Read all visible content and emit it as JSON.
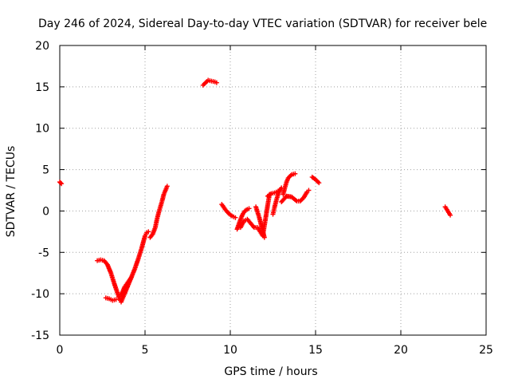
{
  "chart_data": {
    "type": "scatter",
    "title": "Day 246 of 2024, Sidereal Day-to-day VTEC variation (SDTVAR) for receiver bele",
    "xlabel": "GPS time / hours",
    "ylabel": "SDTVAR / TECUs",
    "xlim": [
      0,
      25
    ],
    "ylim": [
      -15,
      20
    ],
    "xticks": [
      0,
      5,
      10,
      15,
      20,
      25
    ],
    "yticks": [
      -15,
      -10,
      -5,
      0,
      5,
      10,
      15,
      20
    ],
    "xtick_labels": [
      "0",
      "5",
      "10",
      "15",
      "20",
      "25"
    ],
    "ytick_labels": [
      "-15",
      "-10",
      "-5",
      "0",
      "5",
      "10",
      "15",
      "20"
    ],
    "grid": true,
    "marker": "+",
    "color": "#ff0000",
    "segments": [
      {
        "name": "arc-1",
        "points": [
          [
            0.0,
            3.5
          ],
          [
            0.05,
            3.4
          ],
          [
            0.1,
            3.3
          ]
        ]
      },
      {
        "name": "arc-2",
        "points": [
          [
            2.2,
            -6.0
          ],
          [
            2.4,
            -5.9
          ],
          [
            2.6,
            -6.0
          ],
          [
            2.8,
            -6.5
          ],
          [
            3.0,
            -7.5
          ],
          [
            3.2,
            -8.8
          ],
          [
            3.4,
            -10.0
          ],
          [
            3.55,
            -10.8
          ],
          [
            3.6,
            -11.0
          ],
          [
            3.7,
            -10.5
          ],
          [
            3.8,
            -10.0
          ],
          [
            4.0,
            -9.0
          ],
          [
            4.2,
            -8.0
          ],
          [
            4.4,
            -7.0
          ],
          [
            4.6,
            -5.8
          ],
          [
            4.8,
            -4.5
          ],
          [
            5.0,
            -3.0
          ],
          [
            5.1,
            -2.6
          ],
          [
            5.2,
            -2.5
          ]
        ]
      },
      {
        "name": "arc-3",
        "points": [
          [
            2.7,
            -10.5
          ],
          [
            2.9,
            -10.6
          ],
          [
            3.1,
            -10.8
          ],
          [
            3.3,
            -10.7
          ]
        ]
      },
      {
        "name": "arc-4",
        "points": [
          [
            3.6,
            -10.2
          ],
          [
            3.8,
            -9.2
          ],
          [
            4.0,
            -8.6
          ],
          [
            4.2,
            -8.0
          ]
        ]
      },
      {
        "name": "arc-5",
        "points": [
          [
            5.3,
            -3.2
          ],
          [
            5.45,
            -2.8
          ],
          [
            5.6,
            -2.0
          ],
          [
            5.7,
            -1.0
          ],
          [
            5.8,
            -0.2
          ],
          [
            5.9,
            0.5
          ],
          [
            6.0,
            1.2
          ],
          [
            6.1,
            2.0
          ],
          [
            6.2,
            2.5
          ],
          [
            6.3,
            3.0
          ]
        ]
      },
      {
        "name": "arc-6",
        "points": [
          [
            8.4,
            15.2
          ],
          [
            8.55,
            15.5
          ],
          [
            8.7,
            15.8
          ],
          [
            8.9,
            15.7
          ],
          [
            9.1,
            15.6
          ],
          [
            9.2,
            15.5
          ]
        ]
      },
      {
        "name": "arc-7",
        "points": [
          [
            9.5,
            0.8
          ],
          [
            9.7,
            0.2
          ],
          [
            9.9,
            -0.3
          ],
          [
            10.1,
            -0.6
          ],
          [
            10.3,
            -0.8
          ]
        ]
      },
      {
        "name": "arc-8",
        "points": [
          [
            10.4,
            -2.2
          ],
          [
            10.55,
            -1.3
          ],
          [
            10.7,
            -0.5
          ],
          [
            10.85,
            0.0
          ],
          [
            11.0,
            0.2
          ],
          [
            11.1,
            0.3
          ]
        ]
      },
      {
        "name": "arc-9",
        "points": [
          [
            10.6,
            -2.0
          ],
          [
            10.8,
            -1.2
          ],
          [
            11.0,
            -1.0
          ],
          [
            11.2,
            -1.5
          ],
          [
            11.4,
            -2.0
          ],
          [
            11.6,
            -2.0
          ],
          [
            11.75,
            -2.5
          ],
          [
            11.9,
            -3.0
          ],
          [
            12.0,
            -1.8
          ],
          [
            12.1,
            -0.5
          ],
          [
            12.2,
            0.8
          ],
          [
            12.3,
            2.0
          ]
        ]
      },
      {
        "name": "arc-10",
        "points": [
          [
            11.5,
            0.5
          ],
          [
            11.7,
            -0.8
          ],
          [
            11.85,
            -2.0
          ],
          [
            12.0,
            -3.2
          ]
        ]
      },
      {
        "name": "arc-11",
        "points": [
          [
            12.2,
            1.8
          ],
          [
            12.4,
            2.1
          ],
          [
            12.6,
            2.2
          ],
          [
            12.8,
            2.4
          ]
        ]
      },
      {
        "name": "arc-12",
        "points": [
          [
            12.5,
            -0.4
          ],
          [
            12.6,
            0.5
          ],
          [
            12.7,
            1.3
          ],
          [
            12.8,
            2.0
          ],
          [
            12.9,
            2.5
          ],
          [
            13.0,
            2.8
          ]
        ]
      },
      {
        "name": "arc-13",
        "points": [
          [
            13.1,
            2.0
          ],
          [
            13.2,
            2.8
          ],
          [
            13.3,
            3.5
          ],
          [
            13.4,
            4.0
          ],
          [
            13.6,
            4.4
          ],
          [
            13.8,
            4.5
          ]
        ]
      },
      {
        "name": "arc-14",
        "points": [
          [
            13.0,
            1.1
          ],
          [
            13.3,
            1.8
          ],
          [
            13.6,
            1.7
          ],
          [
            13.9,
            1.2
          ],
          [
            14.1,
            1.2
          ],
          [
            14.3,
            1.6
          ],
          [
            14.5,
            2.3
          ],
          [
            14.6,
            2.5
          ]
        ]
      },
      {
        "name": "arc-15",
        "points": [
          [
            14.8,
            4.1
          ],
          [
            15.0,
            3.8
          ],
          [
            15.2,
            3.4
          ]
        ]
      },
      {
        "name": "arc-16",
        "points": [
          [
            22.6,
            0.5
          ],
          [
            22.75,
            0.0
          ],
          [
            22.9,
            -0.5
          ]
        ]
      }
    ]
  }
}
